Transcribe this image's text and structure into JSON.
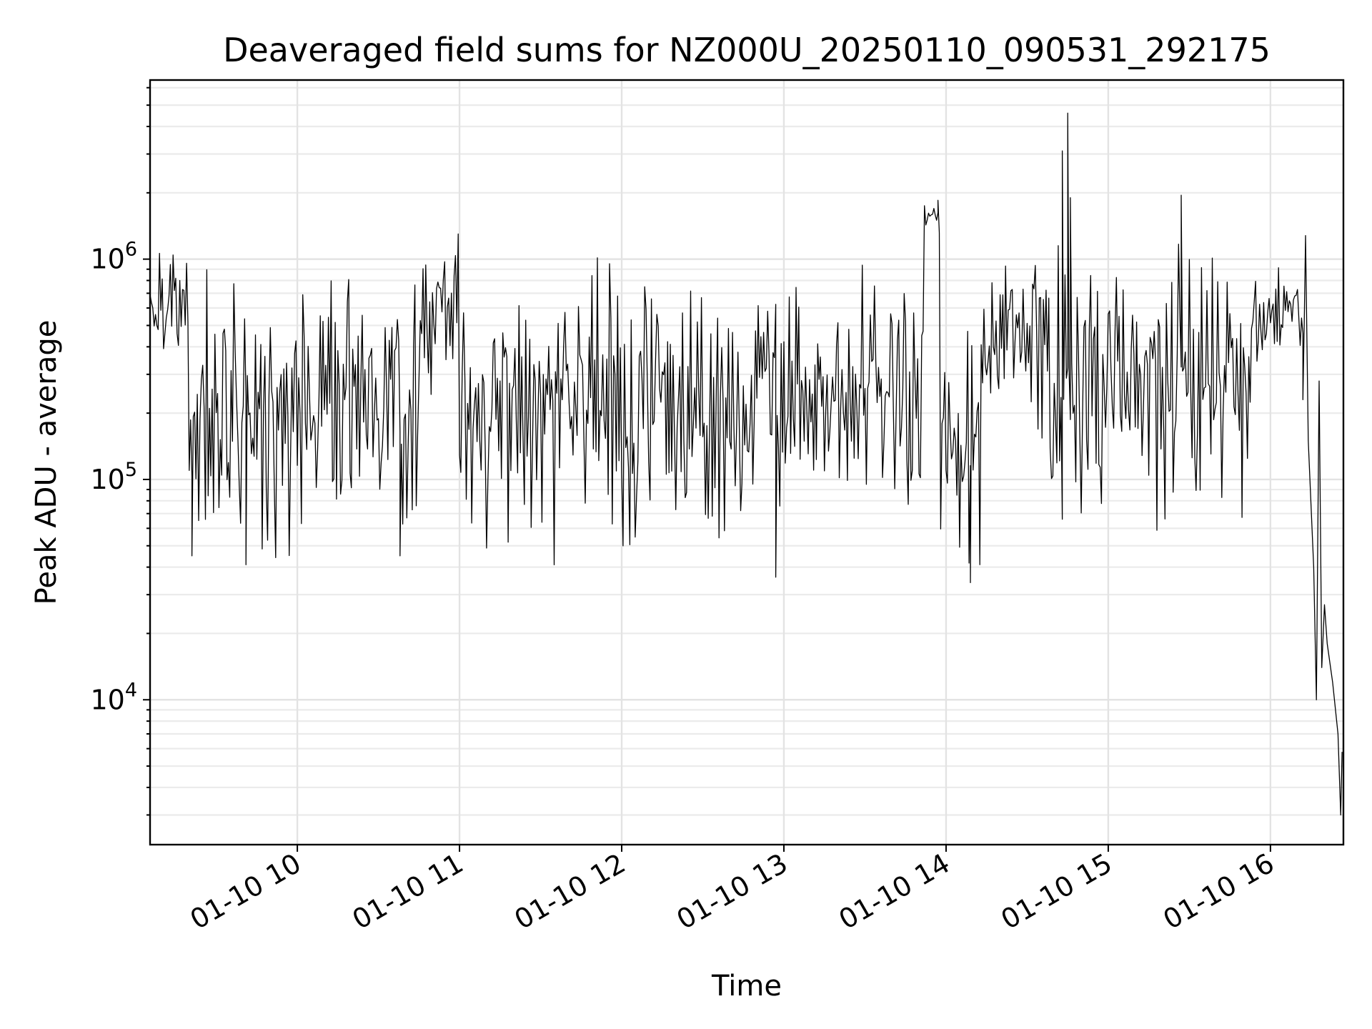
{
  "chart_data": {
    "type": "line",
    "title": "Deaveraged field sums for NZ000U_20250110_090531_292175",
    "xlabel": "Time",
    "ylabel": "Peak ADU - average",
    "yscale": "log",
    "ylim": [
      2200,
      6500000
    ],
    "xlim": [
      "2025-01-10 09:05:31",
      "2025-01-10 16:27:00"
    ],
    "grid": true,
    "legend": "none",
    "x_ticks": [
      {
        "t": "2025-01-10 10:00",
        "label": "01-10 10"
      },
      {
        "t": "2025-01-10 11:00",
        "label": "01-10 11"
      },
      {
        "t": "2025-01-10 12:00",
        "label": "01-10 12"
      },
      {
        "t": "2025-01-10 13:00",
        "label": "01-10 13"
      },
      {
        "t": "2025-01-10 14:00",
        "label": "01-10 14"
      },
      {
        "t": "2025-01-10 15:00",
        "label": "01-10 15"
      },
      {
        "t": "2025-01-10 16:00",
        "label": "01-10 16"
      }
    ],
    "y_ticks": [
      {
        "value": 10000,
        "base": "10",
        "exp": "4"
      },
      {
        "value": 100000,
        "base": "10",
        "exp": "5"
      },
      {
        "value": 1000000,
        "base": "10",
        "exp": "6"
      }
    ],
    "series": [
      {
        "color": "#000000",
        "segments": [
          {
            "start": "2025-01-10 09:05:31",
            "end": "2025-01-10 09:20:00",
            "level": 650000,
            "spread": 0.35,
            "seed": 11
          },
          {
            "start": "2025-01-10 09:20:00",
            "end": "2025-01-10 09:55:00",
            "level": 190000,
            "spread": 0.9,
            "seed": 12
          },
          {
            "start": "2025-01-10 09:55:00",
            "end": "2025-01-10 10:45:00",
            "level": 240000,
            "spread": 0.85,
            "seed": 13
          },
          {
            "start": "2025-01-10 10:45:00",
            "end": "2025-01-10 11:00:00",
            "level": 500000,
            "spread": 0.6,
            "seed": 14
          },
          {
            "start": "2025-01-10 11:00:00",
            "end": "2025-01-10 12:45:00",
            "level": 200000,
            "spread": 0.85,
            "seed": 15
          },
          {
            "start": "2025-01-10 12:45:00",
            "end": "2025-01-10 13:52:00",
            "level": 250000,
            "spread": 0.8,
            "seed": 16
          },
          {
            "start": "2025-01-10 13:52:00",
            "end": "2025-01-10 13:58:00",
            "level": 1500000,
            "spread": 0.15,
            "seed": 17
          },
          {
            "start": "2025-01-10 13:58:00",
            "end": "2025-01-10 14:13:00",
            "level": 130000,
            "spread": 0.7,
            "seed": 18
          },
          {
            "start": "2025-01-10 14:13:00",
            "end": "2025-01-10 14:35:00",
            "level": 450000,
            "spread": 0.55,
            "seed": 19
          },
          {
            "start": "2025-01-10 14:35:00",
            "end": "2025-01-10 14:58:00",
            "level": 300000,
            "spread": 1.05,
            "seed": 20
          },
          {
            "start": "2025-01-10 14:58:00",
            "end": "2025-01-10 15:53:00",
            "level": 320000,
            "spread": 0.85,
            "seed": 21
          },
          {
            "start": "2025-01-10 15:53:00",
            "end": "2025-01-10 16:13:00",
            "level": 550000,
            "spread": 0.3,
            "seed": 22
          }
        ],
        "points": [
          {
            "t": "2025-01-10 09:21:00",
            "y": 45000
          },
          {
            "t": "2025-01-10 09:41:00",
            "y": 41000
          },
          {
            "t": "2025-01-10 10:38:00",
            "y": 45000
          },
          {
            "t": "2025-01-10 12:57:00",
            "y": 36000
          },
          {
            "t": "2025-01-10 13:57:00",
            "y": 1850000
          },
          {
            "t": "2025-01-10 14:09:00",
            "y": 34000
          },
          {
            "t": "2025-01-10 14:43:00",
            "y": 3100000
          },
          {
            "t": "2025-01-10 14:45:00",
            "y": 4600000
          },
          {
            "t": "2025-01-10 14:46:00",
            "y": 1900000
          },
          {
            "t": "2025-01-10 15:27:00",
            "y": 1950000
          },
          {
            "t": "2025-01-10 16:12:00",
            "y": 230000
          },
          {
            "t": "2025-01-10 16:13:00",
            "y": 1280000
          },
          {
            "t": "2025-01-10 16:14:00",
            "y": 150000
          },
          {
            "t": "2025-01-10 16:16:00",
            "y": 40000
          },
          {
            "t": "2025-01-10 16:17:00",
            "y": 10000
          },
          {
            "t": "2025-01-10 16:18:00",
            "y": 280000
          },
          {
            "t": "2025-01-10 16:19:00",
            "y": 14000
          },
          {
            "t": "2025-01-10 16:20:00",
            "y": 27000
          },
          {
            "t": "2025-01-10 16:21:00",
            "y": 18000
          },
          {
            "t": "2025-01-10 16:23:00",
            "y": 12000
          },
          {
            "t": "2025-01-10 16:25:00",
            "y": 7000
          },
          {
            "t": "2025-01-10 16:26:00",
            "y": 3000
          },
          {
            "t": "2025-01-10 16:26:30",
            "y": 5800
          }
        ]
      }
    ]
  }
}
